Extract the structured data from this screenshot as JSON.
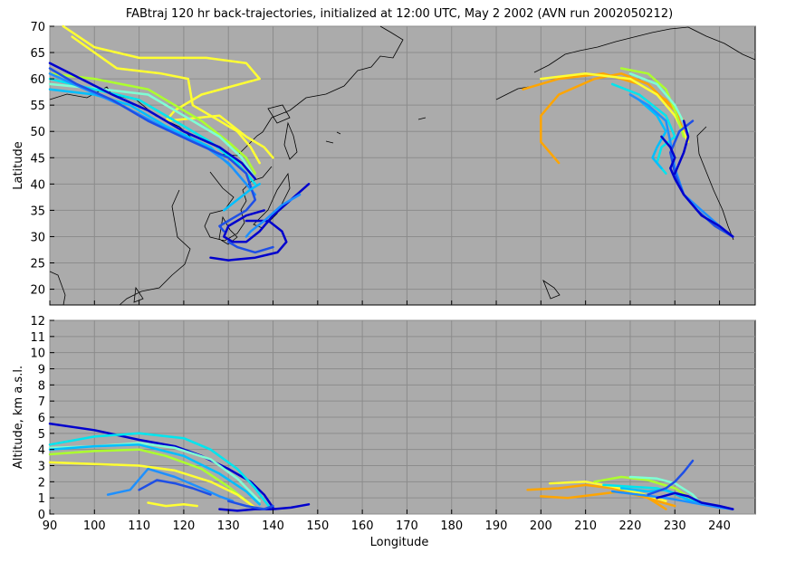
{
  "figure": {
    "title": "FABtraj 120 hr back-trajectories, initialized at 12:00 UTC, May 2 2002 (AVN run 2002050212)"
  },
  "colors": {
    "axes_background": "#ababab",
    "grid": "#8c8c8c",
    "coastline": "#000000",
    "trajectory_palette": [
      "#0000cd",
      "#1e4fe6",
      "#1e90ff",
      "#00bfff",
      "#00e5ee",
      "#7fffd4",
      "#adff2f",
      "#ffff33",
      "#ffa500"
    ]
  },
  "chart_data": [
    {
      "type": "line",
      "panel": "map",
      "ylabel": "Latitude",
      "xlim": [
        90,
        248
      ],
      "ylim": [
        17,
        70
      ],
      "yticks": [
        20,
        25,
        30,
        35,
        40,
        45,
        50,
        55,
        60,
        65,
        70
      ],
      "grid": true,
      "series": [
        {
          "color": "#ffff33",
          "x": [
            93,
            100,
            110,
            125,
            134,
            137,
            124,
            118,
            116,
            128,
            134,
            138,
            140
          ],
          "y": [
            70,
            66,
            64,
            64,
            63,
            60,
            57,
            54,
            52,
            53,
            49,
            47,
            45
          ]
        },
        {
          "color": "#ffff33",
          "x": [
            95,
            105,
            115,
            121,
            122,
            128,
            132,
            135,
            137
          ],
          "y": [
            68,
            62,
            61,
            60,
            55,
            52,
            50,
            47,
            44
          ]
        },
        {
          "color": "#adff2f",
          "x": [
            90,
            100,
            112,
            118,
            124,
            130,
            134,
            136
          ],
          "y": [
            61,
            60,
            58,
            55,
            52,
            48,
            45,
            42
          ]
        },
        {
          "color": "#7fffd4",
          "x": [
            90,
            102,
            112,
            120,
            128,
            133,
            136
          ],
          "y": [
            59,
            58,
            57,
            53,
            49,
            45,
            41
          ]
        },
        {
          "color": "#00e5ee",
          "x": [
            90,
            100,
            110,
            118,
            126,
            132,
            136
          ],
          "y": [
            60,
            58,
            56,
            52,
            48,
            44,
            40
          ]
        },
        {
          "color": "#00bfff",
          "x": [
            90,
            100,
            108,
            116,
            126,
            131,
            135
          ],
          "y": [
            58,
            57,
            55,
            51,
            47,
            43,
            39
          ]
        },
        {
          "color": "#1e90ff",
          "x": [
            90,
            98,
            106,
            115,
            125,
            130,
            133,
            136
          ],
          "y": [
            61,
            58,
            55,
            51,
            47,
            44,
            41,
            38
          ]
        },
        {
          "color": "#1e4fe6",
          "x": [
            90,
            96,
            104,
            112,
            122,
            130,
            134,
            136,
            134,
            130,
            128,
            129
          ],
          "y": [
            62,
            59,
            56,
            52,
            48,
            45,
            42,
            37,
            35,
            33,
            32,
            31
          ]
        },
        {
          "color": "#0000cd",
          "x": [
            90,
            97,
            104,
            112,
            120,
            128,
            133,
            136
          ],
          "y": [
            63,
            60,
            57,
            54,
            50,
            47,
            44,
            41
          ]
        },
        {
          "color": "#0000cd",
          "x": [
            148,
            144,
            140,
            137,
            134,
            131,
            129,
            130,
            134,
            138
          ],
          "y": [
            40,
            37,
            34,
            31,
            29,
            29,
            30,
            32,
            34,
            35
          ]
        },
        {
          "color": "#1e4fe6",
          "x": [
            140,
            136,
            132,
            130
          ],
          "y": [
            28,
            27,
            28,
            29
          ]
        },
        {
          "color": "#0000cd",
          "x": [
            126,
            130,
            136,
            141,
            143,
            142,
            139,
            134
          ],
          "y": [
            26,
            25.5,
            26,
            27,
            29,
            31,
            33,
            33
          ]
        },
        {
          "color": "#1e90ff",
          "x": [
            146,
            142,
            138,
            135,
            134
          ],
          "y": [
            38,
            36,
            33,
            31,
            30
          ]
        },
        {
          "color": "#00bfff",
          "x": [
            129,
            132,
            135,
            137
          ],
          "y": [
            35,
            37,
            39,
            40
          ]
        },
        {
          "color": "#ffa500",
          "x": [
            204,
            200,
            200,
            204,
            212,
            218,
            224,
            230,
            232
          ],
          "y": [
            44,
            48,
            53,
            57,
            60,
            61,
            59,
            54,
            50
          ]
        },
        {
          "color": "#ffa500",
          "x": [
            196,
            204,
            214,
            222,
            228,
            232
          ],
          "y": [
            58,
            60,
            61,
            59,
            56,
            52
          ]
        },
        {
          "color": "#ffff33",
          "x": [
            200,
            210,
            220,
            226,
            230,
            233
          ],
          "y": [
            60,
            61,
            60,
            57,
            53,
            48
          ]
        },
        {
          "color": "#adff2f",
          "x": [
            218,
            224,
            228,
            230,
            232
          ],
          "y": [
            62,
            61,
            58,
            54,
            49
          ]
        },
        {
          "color": "#7fffd4",
          "x": [
            220,
            226,
            230,
            233
          ],
          "y": [
            61,
            59,
            55,
            50
          ]
        },
        {
          "color": "#00e5ee",
          "x": [
            216,
            222,
            228,
            230,
            227,
            226,
            228
          ],
          "y": [
            59,
            57,
            53,
            49,
            47,
            44,
            42
          ]
        },
        {
          "color": "#00bfff",
          "x": [
            222,
            226,
            228,
            226,
            225,
            227
          ],
          "y": [
            56,
            53,
            50,
            47,
            45,
            43
          ]
        },
        {
          "color": "#1e90ff",
          "x": [
            220,
            224,
            228,
            229,
            230,
            232,
            236,
            240,
            243
          ],
          "y": [
            57,
            55,
            52,
            48,
            43,
            38,
            35,
            32,
            30
          ]
        },
        {
          "color": "#1e4fe6",
          "x": [
            234,
            231,
            229,
            230,
            232,
            235,
            239,
            243
          ],
          "y": [
            52,
            50,
            46,
            42,
            38,
            35,
            32,
            30
          ]
        },
        {
          "color": "#0000cd",
          "x": [
            227,
            229,
            230,
            229,
            230,
            232,
            236,
            240,
            243
          ],
          "y": [
            49,
            47,
            45,
            43,
            41,
            38,
            34,
            32,
            30
          ]
        },
        {
          "color": "#0000cd",
          "x": [
            232,
            233,
            232,
            231,
            230
          ],
          "y": [
            52,
            49,
            46,
            44,
            42
          ]
        }
      ]
    },
    {
      "type": "line",
      "panel": "altitude",
      "xlabel": "Longitude",
      "ylabel": "Altitude, km a.s.l.",
      "xlim": [
        90,
        248
      ],
      "ylim": [
        0,
        12
      ],
      "xticks": [
        90,
        100,
        110,
        120,
        130,
        140,
        150,
        160,
        170,
        180,
        190,
        200,
        210,
        220,
        230,
        240
      ],
      "yticks": [
        0,
        1,
        2,
        3,
        4,
        5,
        6,
        7,
        8,
        9,
        10,
        11,
        12
      ],
      "grid": true,
      "series": [
        {
          "color": "#0000cd",
          "x": [
            90,
            100,
            110,
            118,
            124,
            130,
            135,
            138,
            140
          ],
          "y": [
            5.6,
            5.2,
            4.6,
            4.2,
            3.6,
            2.8,
            2.0,
            1.2,
            0.4
          ]
        },
        {
          "color": "#00e5ee",
          "x": [
            90,
            100,
            110,
            120,
            126,
            132,
            136,
            139
          ],
          "y": [
            4.3,
            4.8,
            5.0,
            4.7,
            4.0,
            2.8,
            1.6,
            0.5
          ]
        },
        {
          "color": "#7fffd4",
          "x": [
            90,
            100,
            110,
            118,
            126,
            132,
            137
          ],
          "y": [
            4.1,
            4.2,
            4.4,
            4.1,
            3.4,
            2.2,
            0.8
          ]
        },
        {
          "color": "#adff2f",
          "x": [
            90,
            100,
            110,
            116,
            124,
            130,
            135
          ],
          "y": [
            3.7,
            3.9,
            4.0,
            3.6,
            2.8,
            1.7,
            0.6
          ]
        },
        {
          "color": "#ffff33",
          "x": [
            90,
            100,
            110,
            118,
            126,
            132,
            136
          ],
          "y": [
            3.2,
            3.1,
            3.0,
            2.7,
            2.0,
            1.2,
            0.4
          ]
        },
        {
          "color": "#00bfff",
          "x": [
            90,
            100,
            110,
            120,
            128,
            134,
            137
          ],
          "y": [
            4.0,
            4.2,
            4.3,
            3.6,
            2.5,
            1.4,
            0.6
          ]
        },
        {
          "color": "#1e90ff",
          "x": [
            103,
            108,
            112,
            118,
            124,
            128,
            131
          ],
          "y": [
            1.2,
            1.5,
            2.8,
            2.3,
            1.6,
            1.1,
            0.8
          ]
        },
        {
          "color": "#1e4fe6",
          "x": [
            110,
            114,
            118,
            122,
            126
          ],
          "y": [
            1.5,
            2.1,
            1.9,
            1.6,
            1.2
          ]
        },
        {
          "color": "#ffff33",
          "x": [
            112,
            116,
            120,
            123
          ],
          "y": [
            0.7,
            0.5,
            0.6,
            0.5
          ]
        },
        {
          "color": "#0000cd",
          "x": [
            128,
            132,
            136,
            140,
            144,
            148
          ],
          "y": [
            0.3,
            0.2,
            0.3,
            0.3,
            0.4,
            0.6
          ]
        },
        {
          "color": "#1e4fe6",
          "x": [
            130,
            134,
            138,
            140
          ],
          "y": [
            0.8,
            0.5,
            0.3,
            0.5
          ]
        },
        {
          "color": "#ffa500",
          "x": [
            197,
            204,
            210,
            216,
            222,
            226,
            230
          ],
          "y": [
            1.5,
            1.6,
            1.8,
            1.6,
            1.2,
            0.8,
            0.5
          ]
        },
        {
          "color": "#ffa500",
          "x": [
            200,
            206,
            212,
            218,
            224,
            228
          ],
          "y": [
            1.1,
            1.0,
            1.2,
            1.4,
            1.0,
            0.3
          ]
        },
        {
          "color": "#ffff33",
          "x": [
            202,
            210,
            216,
            222,
            228
          ],
          "y": [
            1.9,
            2.0,
            1.7,
            1.3,
            0.8
          ]
        },
        {
          "color": "#adff2f",
          "x": [
            212,
            218,
            224,
            230,
            234
          ],
          "y": [
            2.0,
            2.3,
            2.1,
            1.6,
            0.9
          ]
        },
        {
          "color": "#7fffd4",
          "x": [
            220,
            226,
            230,
            234,
            236
          ],
          "y": [
            2.3,
            2.2,
            1.9,
            1.2,
            0.6
          ]
        },
        {
          "color": "#00e5ee",
          "x": [
            214,
            220,
            226,
            230,
            234
          ],
          "y": [
            1.8,
            1.7,
            1.6,
            1.3,
            0.7
          ]
        },
        {
          "color": "#00bfff",
          "x": [
            218,
            224,
            228,
            232,
            236
          ],
          "y": [
            1.6,
            1.4,
            1.5,
            1.0,
            0.6
          ]
        },
        {
          "color": "#1e90ff",
          "x": [
            216,
            222,
            228,
            232,
            236,
            240,
            243
          ],
          "y": [
            1.4,
            1.2,
            1.0,
            0.8,
            0.6,
            0.4,
            0.3
          ]
        },
        {
          "color": "#1e4fe6",
          "x": [
            224,
            228,
            230,
            232,
            234
          ],
          "y": [
            1.2,
            1.6,
            2.0,
            2.6,
            3.3
          ]
        },
        {
          "color": "#0000cd",
          "x": [
            226,
            230,
            233,
            236,
            240,
            243
          ],
          "y": [
            1.0,
            1.3,
            1.1,
            0.7,
            0.5,
            0.3
          ]
        }
      ]
    }
  ]
}
